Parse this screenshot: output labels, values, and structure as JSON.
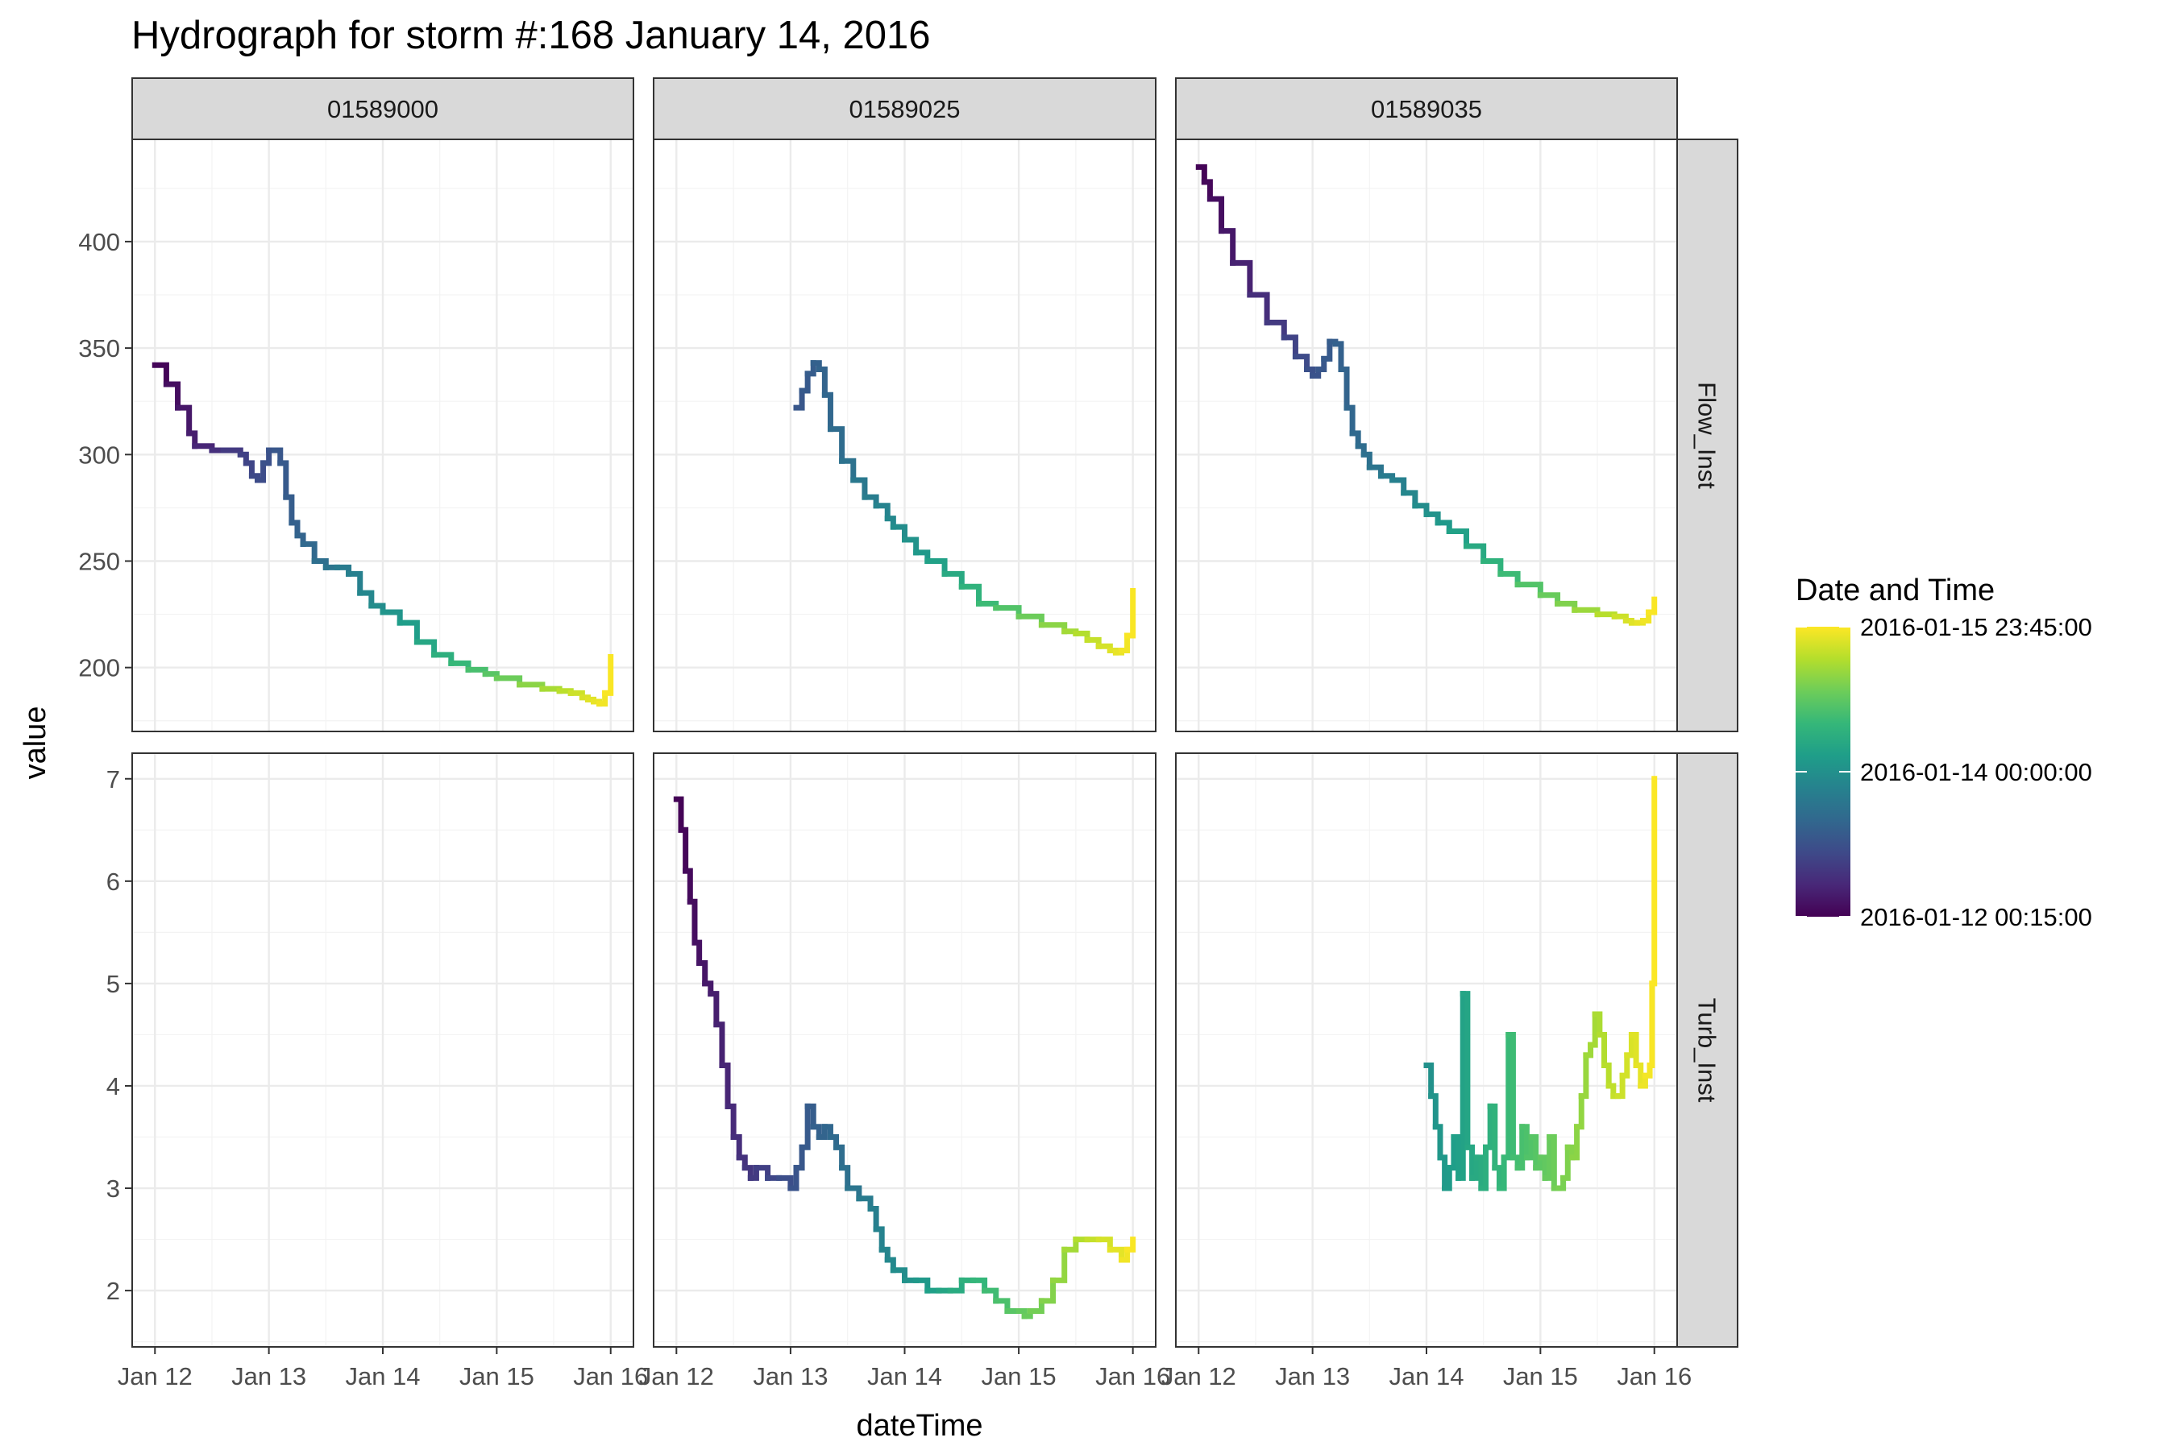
{
  "chart_data": {
    "type": "line",
    "title": "Hydrograph for storm #:168   January 14, 2016",
    "xlabel": "dateTime",
    "ylabel": "value",
    "columns": [
      "01589000",
      "01589025",
      "01589035"
    ],
    "rows": [
      "Flow_Inst",
      "Turb_Inst"
    ],
    "x_ticks": [
      "Jan 12",
      "Jan 13",
      "Jan 14",
      "Jan 15",
      "Jan 16"
    ],
    "x_tick_values": [
      0,
      1,
      2,
      3,
      4
    ],
    "xlim": [
      -0.2,
      4.2
    ],
    "grid": true,
    "rows_axes": [
      {
        "ylim": [
          170,
          448
        ],
        "ticks": [
          200,
          250,
          300,
          350,
          400
        ],
        "tick_labels": [
          "200",
          "250",
          "300",
          "350",
          "400"
        ]
      },
      {
        "ylim": [
          1.45,
          7.25
        ],
        "ticks": [
          2,
          3,
          4,
          5,
          6,
          7
        ],
        "tick_labels": [
          "2",
          "3",
          "4",
          "5",
          "6",
          "7"
        ]
      }
    ],
    "legend": {
      "title": "Date and Time",
      "placement": "right",
      "labels": [
        "2016-01-15 23:45:00",
        "2016-01-14 00:00:00",
        "2016-01-12 00:15:00"
      ],
      "stops": [
        1.0,
        0.5,
        0.0
      ],
      "colors": [
        "#440154",
        "#482878",
        "#3E4A89",
        "#31688E",
        "#26828E",
        "#1F9E89",
        "#35B779",
        "#6DCD59",
        "#B4DE2C",
        "#FDE725"
      ]
    },
    "series": [
      {
        "row": 0,
        "col": 0,
        "x": [
          0.0,
          0.1,
          0.2,
          0.3,
          0.35,
          0.5,
          0.6,
          0.75,
          0.8,
          0.85,
          0.9,
          0.95,
          1.0,
          1.05,
          1.1,
          1.15,
          1.2,
          1.25,
          1.3,
          1.4,
          1.5,
          1.6,
          1.7,
          1.8,
          1.9,
          2.0,
          2.15,
          2.3,
          2.45,
          2.6,
          2.75,
          2.9,
          3.0,
          3.2,
          3.4,
          3.55,
          3.65,
          3.75,
          3.8,
          3.85,
          3.9,
          3.95,
          4.0
        ],
        "y": [
          342,
          333,
          322,
          310,
          304,
          302,
          302,
          300,
          296,
          290,
          288,
          296,
          302,
          302,
          296,
          280,
          268,
          262,
          258,
          250,
          247,
          247,
          244,
          235,
          229,
          226,
          221,
          212,
          206,
          202,
          199,
          197,
          195,
          192,
          190,
          189,
          188,
          186,
          185,
          184,
          183,
          188,
          205
        ]
      },
      {
        "row": 0,
        "col": 1,
        "x": [
          1.05,
          1.1,
          1.15,
          1.2,
          1.25,
          1.3,
          1.35,
          1.45,
          1.55,
          1.65,
          1.75,
          1.85,
          1.9,
          2.0,
          2.1,
          2.2,
          2.35,
          2.5,
          2.65,
          2.8,
          3.0,
          3.2,
          3.4,
          3.5,
          3.6,
          3.7,
          3.8,
          3.85,
          3.9,
          3.95,
          4.0
        ],
        "y": [
          322,
          330,
          338,
          343,
          340,
          328,
          312,
          297,
          288,
          280,
          276,
          270,
          266,
          260,
          254,
          250,
          244,
          238,
          230,
          228,
          224,
          220,
          217,
          216,
          213,
          210,
          208,
          207,
          208,
          215,
          236
        ]
      },
      {
        "row": 0,
        "col": 2,
        "x": [
          0.0,
          0.05,
          0.1,
          0.2,
          0.3,
          0.45,
          0.6,
          0.75,
          0.85,
          0.95,
          1.0,
          1.05,
          1.1,
          1.15,
          1.2,
          1.25,
          1.3,
          1.35,
          1.4,
          1.45,
          1.5,
          1.6,
          1.7,
          1.8,
          1.9,
          2.0,
          2.1,
          2.2,
          2.35,
          2.5,
          2.65,
          2.8,
          3.0,
          3.15,
          3.3,
          3.5,
          3.65,
          3.75,
          3.8,
          3.85,
          3.9,
          3.95,
          4.0
        ],
        "y": [
          435,
          428,
          420,
          405,
          390,
          375,
          362,
          355,
          346,
          340,
          337,
          340,
          345,
          353,
          352,
          340,
          322,
          310,
          304,
          300,
          294,
          290,
          288,
          282,
          276,
          272,
          268,
          264,
          257,
          250,
          244,
          239,
          234,
          230,
          227,
          225,
          224,
          222,
          221,
          221,
          222,
          226,
          232
        ]
      },
      {
        "row": 1,
        "col": 1,
        "x": [
          0.0,
          0.04,
          0.08,
          0.12,
          0.16,
          0.2,
          0.25,
          0.3,
          0.35,
          0.4,
          0.45,
          0.5,
          0.55,
          0.6,
          0.65,
          0.7,
          0.8,
          0.9,
          1.0,
          1.05,
          1.1,
          1.15,
          1.2,
          1.25,
          1.3,
          1.35,
          1.4,
          1.45,
          1.5,
          1.6,
          1.7,
          1.75,
          1.8,
          1.85,
          1.9,
          2.0,
          2.1,
          2.2,
          2.3,
          2.4,
          2.5,
          2.6,
          2.7,
          2.8,
          2.9,
          3.0,
          3.05,
          3.1,
          3.2,
          3.3,
          3.4,
          3.5,
          3.6,
          3.7,
          3.8,
          3.9,
          3.95,
          4.0
        ],
        "y": [
          6.8,
          6.5,
          6.1,
          5.8,
          5.4,
          5.2,
          5.0,
          4.9,
          4.6,
          4.2,
          3.8,
          3.5,
          3.3,
          3.2,
          3.1,
          3.2,
          3.1,
          3.1,
          3.0,
          3.2,
          3.4,
          3.8,
          3.6,
          3.5,
          3.6,
          3.5,
          3.4,
          3.2,
          3.0,
          2.9,
          2.8,
          2.6,
          2.4,
          2.3,
          2.2,
          2.1,
          2.1,
          2.0,
          2.0,
          2.0,
          2.1,
          2.1,
          2.0,
          1.9,
          1.8,
          1.8,
          1.75,
          1.8,
          1.9,
          2.1,
          2.4,
          2.5,
          2.5,
          2.5,
          2.4,
          2.3,
          2.4,
          2.5
        ]
      },
      {
        "row": 1,
        "col": 2,
        "x": [
          2.0,
          2.04,
          2.08,
          2.12,
          2.16,
          2.2,
          2.24,
          2.28,
          2.32,
          2.36,
          2.4,
          2.44,
          2.48,
          2.52,
          2.56,
          2.6,
          2.64,
          2.68,
          2.72,
          2.76,
          2.8,
          2.84,
          2.88,
          2.92,
          2.96,
          3.0,
          3.04,
          3.08,
          3.12,
          3.16,
          3.2,
          3.24,
          3.28,
          3.32,
          3.36,
          3.4,
          3.44,
          3.48,
          3.52,
          3.56,
          3.6,
          3.64,
          3.68,
          3.72,
          3.76,
          3.8,
          3.84,
          3.88,
          3.92,
          3.96,
          3.98,
          4.0
        ],
        "y": [
          4.2,
          3.9,
          3.6,
          3.3,
          3.0,
          3.2,
          3.5,
          3.1,
          4.9,
          3.4,
          3.1,
          3.3,
          3.0,
          3.4,
          3.8,
          3.2,
          3.0,
          3.3,
          4.5,
          3.3,
          3.2,
          3.6,
          3.3,
          3.5,
          3.2,
          3.3,
          3.1,
          3.5,
          3.0,
          3.0,
          3.1,
          3.4,
          3.3,
          3.6,
          3.9,
          4.3,
          4.4,
          4.7,
          4.5,
          4.2,
          4.0,
          3.9,
          3.9,
          4.1,
          4.3,
          4.5,
          4.2,
          4.0,
          4.1,
          4.2,
          5.0,
          7.0
        ]
      }
    ]
  }
}
